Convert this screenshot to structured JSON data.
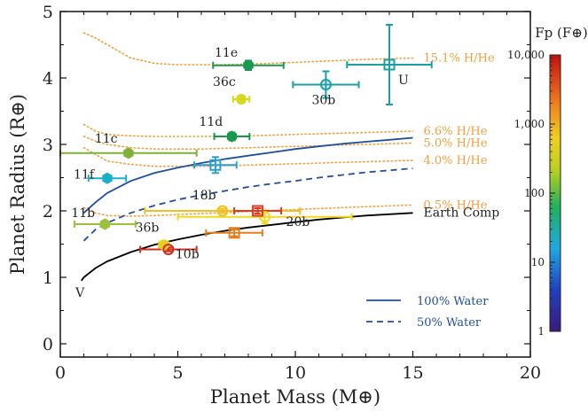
{
  "chart_data": {
    "type": "scatter",
    "xlabel": "Planet Mass (M⊕)",
    "ylabel": "Planet Radius (R⊕)",
    "xlim": [
      0,
      20
    ],
    "ylim": [
      -0.2,
      5
    ],
    "x_ticks": [
      "0",
      "5",
      "10",
      "15",
      "20"
    ],
    "y_ticks": [
      "0",
      "1",
      "2",
      "3",
      "4",
      "5"
    ],
    "colorbar": {
      "title": "Fp (F⊕)",
      "ticks": [
        "1",
        "10",
        "100",
        "1,000",
        "10,000"
      ],
      "scale": "log",
      "range": [
        1,
        10000
      ]
    },
    "planets": [
      {
        "name": "11e",
        "mass": 8.0,
        "radius": 4.19,
        "mass_err": 1.5,
        "radius_err": 0.07,
        "color": "#1a9850",
        "marker": "hexagon"
      },
      {
        "name": "11d",
        "mass": 7.3,
        "radius": 3.12,
        "mass_err": 0.75,
        "radius_err": 0.06,
        "color": "#1a9850",
        "marker": "hexagon"
      },
      {
        "name": "11c",
        "mass": 2.9,
        "radius": 2.87,
        "mass_err": 2.9,
        "radius_err": 0.04,
        "color": "#7fb13a",
        "marker": "hexagon"
      },
      {
        "name": "11f",
        "mass": 2.0,
        "radius": 2.49,
        "mass_err": 0.8,
        "radius_err": 0.04,
        "color": "#1ab0c8",
        "marker": "hexagon"
      },
      {
        "name": "11b",
        "mass": 1.9,
        "radius": 1.8,
        "mass_err": 1.3,
        "radius_err": 0.03,
        "color": "#9bc03a",
        "marker": "hexagon"
      },
      {
        "name": "36c",
        "mass": 7.7,
        "radius": 3.68,
        "mass_err": 0.35,
        "radius_err": 0.05,
        "color": "#d8d820",
        "marker": "circle"
      },
      {
        "name": "36b",
        "mass": 4.4,
        "radius": 1.49,
        "mass_err": 0.2,
        "radius_err": 0.03,
        "color": "#e8d020",
        "marker": "circle"
      },
      {
        "name": "30b",
        "mass": 11.3,
        "radius": 3.9,
        "mass_err": 1.4,
        "radius_err": 0.2,
        "color": "#1aa0a8",
        "marker": "circle-open"
      },
      {
        "name": "U",
        "mass": 14.0,
        "radius": 4.2,
        "mass_err": 1.8,
        "radius_err": 0.6,
        "color": "#1aa0a0",
        "marker": "square-open"
      },
      {
        "name": "",
        "mass": 6.6,
        "radius": 2.69,
        "mass_err": 0.9,
        "radius_err": 0.12,
        "color": "#2aa0d0",
        "marker": "square-open"
      },
      {
        "name": "18b",
        "mass": 6.9,
        "radius": 2.0,
        "mass_err": 3.3,
        "radius_err": 0.03,
        "color": "#f0c020",
        "marker": "circle-open"
      },
      {
        "name": "20b",
        "mass": 8.7,
        "radius": 1.91,
        "mass_err": 3.7,
        "radius_err": 0.1,
        "color": "#f0d820",
        "marker": "circle-open"
      },
      {
        "name": "",
        "mass": 8.4,
        "radius": 2.0,
        "mass_err": 1.0,
        "radius_err": 0.04,
        "color": "#e03a20",
        "marker": "square-open"
      },
      {
        "name": "",
        "mass": 7.4,
        "radius": 1.67,
        "mass_err": 1.2,
        "radius_err": 0.05,
        "color": "#e08020",
        "marker": "square-open"
      },
      {
        "name": "10b",
        "mass": 4.6,
        "radius": 1.42,
        "mass_err": 1.2,
        "radius_err": 0.03,
        "color": "#d03020",
        "marker": "circle-open"
      }
    ],
    "curves": [
      {
        "name": "15.1% H/He",
        "style": "dotted",
        "color": "#f0a040",
        "points": [
          [
            1,
            4.68
          ],
          [
            1.5,
            4.6
          ],
          [
            2,
            4.5
          ],
          [
            2.5,
            4.4
          ],
          [
            3,
            4.3
          ],
          [
            4,
            4.22
          ],
          [
            5,
            4.2
          ],
          [
            7,
            4.2
          ],
          [
            9,
            4.22
          ],
          [
            11,
            4.25
          ],
          [
            13,
            4.28
          ],
          [
            15,
            4.3
          ]
        ]
      },
      {
        "name": "6.6% H/He",
        "style": "dotted",
        "color": "#f0a040",
        "points": [
          [
            1,
            3.3
          ],
          [
            1.5,
            3.2
          ],
          [
            2,
            3.15
          ],
          [
            3,
            3.13
          ],
          [
            4,
            3.12
          ],
          [
            6,
            3.12
          ],
          [
            8,
            3.13
          ],
          [
            10,
            3.15
          ],
          [
            12,
            3.17
          ],
          [
            15,
            3.2
          ]
        ]
      },
      {
        "name": "5.0% H/He",
        "style": "dotted",
        "color": "#f0a040",
        "points": [
          [
            1,
            3.12
          ],
          [
            1.5,
            3.05
          ],
          [
            2,
            3.0
          ],
          [
            3,
            2.95
          ],
          [
            4,
            2.93
          ],
          [
            6,
            2.93
          ],
          [
            8,
            2.95
          ],
          [
            10,
            2.97
          ],
          [
            12,
            2.99
          ],
          [
            15,
            3.02
          ]
        ]
      },
      {
        "name": "4.0% H/He",
        "style": "dotted",
        "color": "#f0a040",
        "points": [
          [
            1,
            2.95
          ],
          [
            1.5,
            2.85
          ],
          [
            2,
            2.75
          ],
          [
            3,
            2.7
          ],
          [
            4,
            2.67
          ],
          [
            6,
            2.67
          ],
          [
            8,
            2.69
          ],
          [
            10,
            2.71
          ],
          [
            12,
            2.73
          ],
          [
            15,
            2.76
          ]
        ]
      },
      {
        "name": "0.5% H/He",
        "style": "dotted",
        "color": "#f0a040",
        "points": [
          [
            1,
            2.05
          ],
          [
            1.5,
            1.97
          ],
          [
            2,
            1.93
          ],
          [
            3,
            1.92
          ],
          [
            4,
            1.93
          ],
          [
            6,
            1.96
          ],
          [
            8,
            1.99
          ],
          [
            10,
            2.02
          ],
          [
            12,
            2.05
          ],
          [
            15,
            2.09
          ]
        ]
      },
      {
        "name": "100% Water",
        "style": "solid",
        "color": "#1f4e9e",
        "points": [
          [
            1,
            1.97
          ],
          [
            1.5,
            2.13
          ],
          [
            2,
            2.27
          ],
          [
            3,
            2.45
          ],
          [
            4,
            2.57
          ],
          [
            5,
            2.65
          ],
          [
            6,
            2.72
          ],
          [
            7,
            2.78
          ],
          [
            8,
            2.83
          ],
          [
            9,
            2.88
          ],
          [
            10,
            2.93
          ],
          [
            11,
            2.97
          ],
          [
            12,
            3.01
          ],
          [
            13,
            3.04
          ],
          [
            14,
            3.07
          ],
          [
            15,
            3.1
          ]
        ]
      },
      {
        "name": "50% Water",
        "style": "dashed",
        "color": "#1f4e9e",
        "points": [
          [
            1,
            1.55
          ],
          [
            1.5,
            1.72
          ],
          [
            2,
            1.82
          ],
          [
            3,
            1.97
          ],
          [
            4,
            2.08
          ],
          [
            5,
            2.17
          ],
          [
            6,
            2.24
          ],
          [
            7,
            2.3
          ],
          [
            8,
            2.36
          ],
          [
            9,
            2.41
          ],
          [
            10,
            2.45
          ],
          [
            11,
            2.5
          ],
          [
            12,
            2.54
          ],
          [
            13,
            2.58
          ],
          [
            14,
            2.61
          ],
          [
            15,
            2.64
          ]
        ]
      },
      {
        "name": "Earth Comp",
        "style": "solid",
        "color": "#000000",
        "points": [
          [
            0.9,
            0.95
          ],
          [
            1,
            1.0
          ],
          [
            1.5,
            1.14
          ],
          [
            2,
            1.24
          ],
          [
            3,
            1.38
          ],
          [
            4,
            1.49
          ],
          [
            5,
            1.57
          ],
          [
            6,
            1.64
          ],
          [
            7,
            1.7
          ],
          [
            8,
            1.75
          ],
          [
            9,
            1.79
          ],
          [
            10,
            1.83
          ],
          [
            11,
            1.87
          ],
          [
            12,
            1.9
          ],
          [
            13,
            1.93
          ],
          [
            14,
            1.95
          ],
          [
            15,
            1.97
          ]
        ]
      }
    ],
    "point_labels": [
      {
        "text": "V",
        "x": 0.95,
        "y": 0.95
      }
    ],
    "legend": {
      "placement": "bottom-right",
      "entries": [
        {
          "label": "100% Water",
          "style": "solid",
          "color": "#1f4e9e"
        },
        {
          "label": "50% Water",
          "style": "dashed",
          "color": "#1f4e9e"
        }
      ]
    },
    "grid": false
  }
}
